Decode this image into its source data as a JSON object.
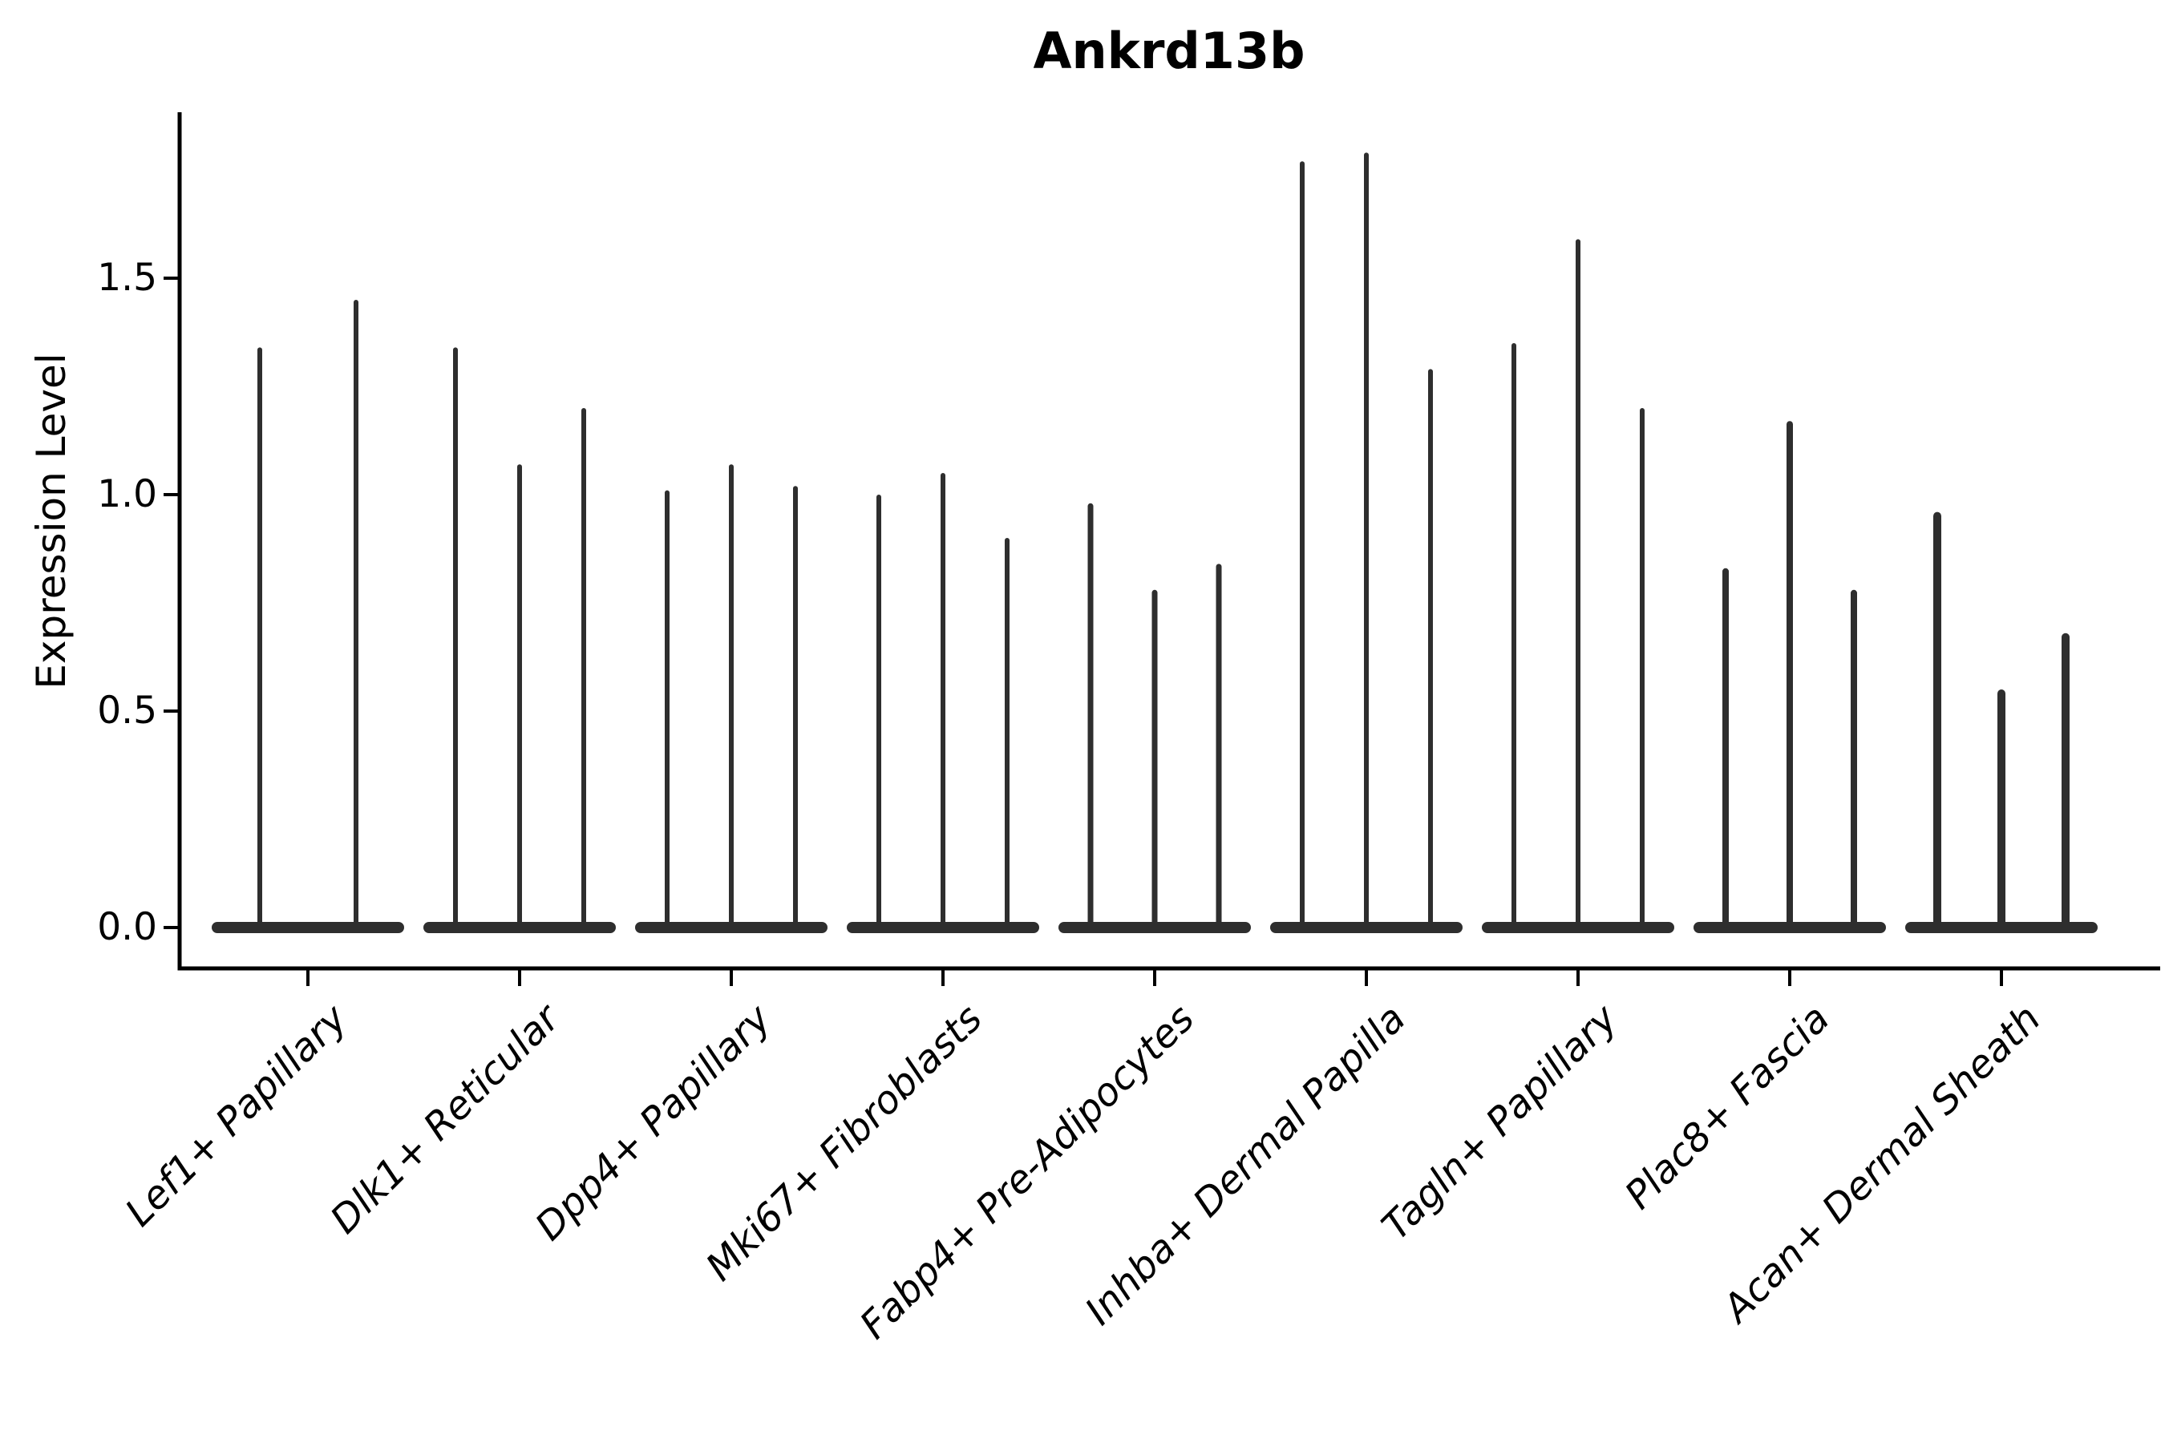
{
  "chart_data": {
    "type": "violin",
    "title": "Ankrd13b",
    "xlabel": "",
    "ylabel": "Expression Level",
    "ytick_labels": [
      "0.0",
      "0.5",
      "1.0",
      "1.5"
    ],
    "ytick_values": [
      0,
      0.5,
      1,
      1.5
    ],
    "ylim": [
      -0.09,
      1.88
    ],
    "grid": false,
    "legend_position": "none",
    "violin_color": "#2e2e2e",
    "axis_color": "#000000",
    "categories": [
      "Lef1+ Papillary",
      "Dlk1+ Reticular",
      "Dpp4+ Papillary",
      "Mki67+ Fibroblasts",
      "Fabp4+ Pre-Adipocytes",
      "Inhba+ Dermal Papilla",
      "Tagln+ Papillary",
      "Plac8+ Fascia",
      "Acan+ Dermal Sheath"
    ],
    "groups": [
      {
        "category": "Lef1+ Papillary",
        "violin_peaks": [
          1.34,
          1.45
        ]
      },
      {
        "category": "Dlk1+ Reticular",
        "violin_peaks": [
          1.34,
          1.07,
          1.2
        ]
      },
      {
        "category": "Dpp4+ Papillary",
        "violin_peaks": [
          1.01,
          1.07,
          1.02
        ]
      },
      {
        "category": "Mki67+ Fibroblasts",
        "violin_peaks": [
          1.0,
          1.05,
          0.9
        ]
      },
      {
        "category": "Fabp4+ Pre-Adipocytes",
        "violin_peaks": [
          0.98,
          0.78,
          0.84
        ]
      },
      {
        "category": "Inhba+ Dermal Papilla",
        "violin_peaks": [
          1.77,
          1.79,
          1.29
        ]
      },
      {
        "category": "Tagln+ Papillary",
        "violin_peaks": [
          1.35,
          1.59,
          1.2
        ]
      },
      {
        "category": "Plac8+ Fascia",
        "violin_peaks": [
          0.83,
          1.17,
          0.78
        ]
      },
      {
        "category": "Acan+ Dermal Sheath",
        "violin_peaks": [
          0.96,
          0.55,
          0.68
        ]
      }
    ]
  }
}
